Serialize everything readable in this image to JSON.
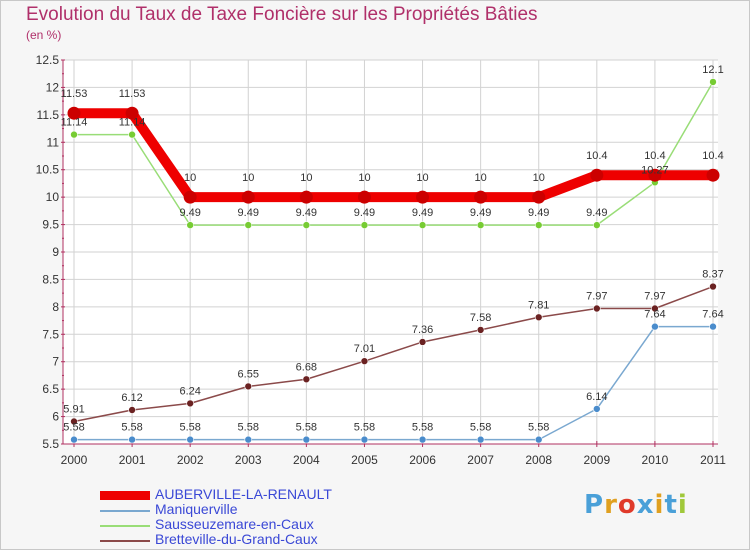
{
  "chart_data": {
    "type": "line",
    "title": "Evolution du Taux de Taxe Foncière sur les Propriétés Bâties",
    "subtitle": "(en %)",
    "xlabel": "",
    "ylabel": "",
    "x": [
      "2000",
      "2001",
      "2002",
      "2003",
      "2004",
      "2005",
      "2006",
      "2007",
      "2008",
      "2009",
      "2010",
      "2011"
    ],
    "ylim": [
      5.5,
      12.5
    ],
    "yticks": [
      "5.5",
      "6",
      "6.5",
      "7",
      "7.5",
      "8",
      "8.5",
      "9",
      "9.5",
      "10",
      "10.5",
      "11",
      "11.5",
      "12",
      "12.5"
    ],
    "grid": true,
    "legend_position": "bottom-left",
    "series": [
      {
        "name": "AUBERVILLE-LA-RENAULT",
        "color": "#ee0000",
        "marker_color": "#cc0000",
        "values": [
          11.53,
          11.53,
          10,
          10,
          10,
          10,
          10,
          10,
          10,
          10.4,
          10.4,
          10.4
        ],
        "labels": [
          "11.53",
          "11.53",
          "10",
          "10",
          "10",
          "10",
          "10",
          "10",
          "10",
          "10.4",
          "10.4",
          "10.4"
        ]
      },
      {
        "name": "Maniquerville",
        "color": "#7aa8d0",
        "marker_color": "#4a8ccc",
        "values": [
          5.58,
          5.58,
          5.58,
          5.58,
          5.58,
          5.58,
          5.58,
          5.58,
          5.58,
          6.14,
          7.64,
          7.64
        ],
        "labels": [
          "5.58",
          "5.58",
          "5.58",
          "5.58",
          "5.58",
          "5.58",
          "5.58",
          "5.58",
          "5.58",
          "6.14",
          "7.64",
          "7.64"
        ]
      },
      {
        "name": "Sausseuzemare-en-Caux",
        "color": "#99dd77",
        "marker_color": "#77cc33",
        "values": [
          11.14,
          11.14,
          9.49,
          9.49,
          9.49,
          9.49,
          9.49,
          9.49,
          9.49,
          9.49,
          10.27,
          12.1
        ],
        "labels": [
          "11.14",
          "11.14",
          "9.49",
          "9.49",
          "9.49",
          "9.49",
          "9.49",
          "9.49",
          "9.49",
          "9.49",
          "10.27",
          "12.1"
        ]
      },
      {
        "name": "Bretteville-du-Grand-Caux",
        "color": "#8b4a4a",
        "marker_color": "#6b2222",
        "values": [
          5.91,
          6.12,
          6.24,
          6.55,
          6.68,
          7.01,
          7.36,
          7.58,
          7.81,
          7.97,
          7.97,
          8.37
        ],
        "labels": [
          "5.91",
          "6.12",
          "6.24",
          "6.55",
          "6.68",
          "7.01",
          "7.36",
          "7.58",
          "7.81",
          "7.97",
          "7.97",
          "8.37"
        ]
      }
    ]
  },
  "branding": {
    "logo_text": "Proxiti"
  }
}
